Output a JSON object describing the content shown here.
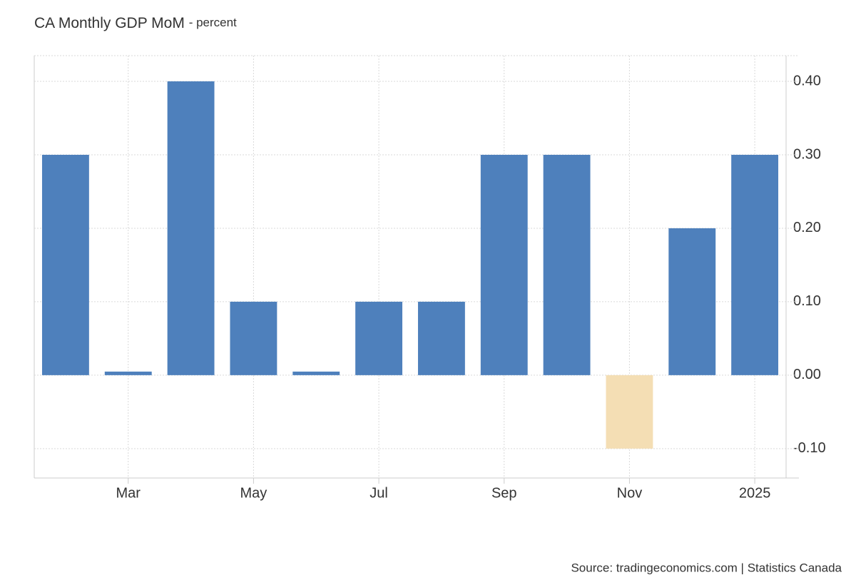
{
  "chart_data": {
    "type": "bar",
    "title": "CA Monthly GDP MoM",
    "subtitle": "- percent",
    "source": "Source: tradingeconomics.com | Statistics Canada",
    "categories": [
      null,
      "Mar",
      null,
      "May",
      null,
      "Jul",
      null,
      "Sep",
      null,
      "Nov",
      null,
      "2025"
    ],
    "values": [
      0.3,
      0,
      0.4,
      0.1,
      0,
      0.1,
      0.1,
      0.3,
      0.3,
      -0.1,
      0.2,
      0.3
    ],
    "color": "#4e80bc",
    "negative_color": "#f4deb4",
    "ylim": [
      -0.14,
      0.435
    ],
    "yticks": [
      {
        "value": -0.1,
        "label": "-0.10"
      },
      {
        "value": 0,
        "label": "0.00"
      },
      {
        "value": 0.1,
        "label": "0.10"
      },
      {
        "value": 0.2,
        "label": "0.20"
      },
      {
        "value": 0.3,
        "label": "0.30"
      },
      {
        "value": 0.4,
        "label": "0.40"
      }
    ],
    "grid": true
  }
}
